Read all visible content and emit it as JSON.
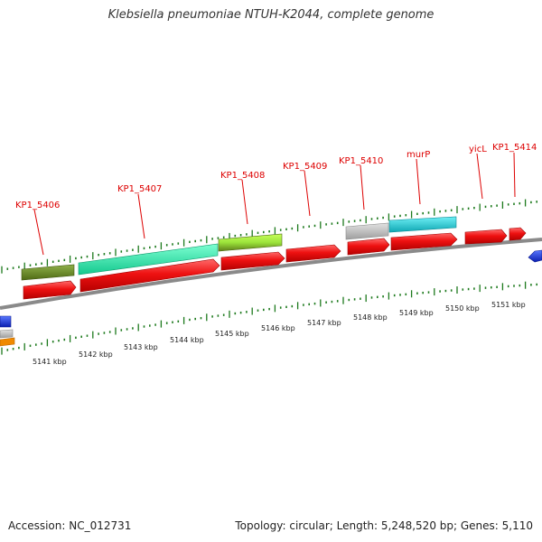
{
  "title": "Klebsiella pneumoniae NTUH-K2044, complete genome",
  "footer": {
    "accession": "Accession: NC_012731",
    "summary": "Topology: circular; Length: 5,248,520 bp; Genes: 5,110"
  },
  "colors": {
    "backbone": "#8a8a8a",
    "cds": "#ee1111",
    "tick": "#1d7a1d",
    "label": "#dd0000",
    "rna_olive": "#6b8e23",
    "rna_aqua": "#22e8a8",
    "rna_lime": "#9be33a",
    "rna_grey": "#bdbdbd",
    "rna_cyan": "#18c6d2",
    "edge_blue": "#1030e0",
    "edge_orange": "#f08a00"
  },
  "scale_labels": [
    "5141 kbp",
    "5142 kbp",
    "5143 kbp",
    "5144 kbp",
    "5145 kbp",
    "5146 kbp",
    "5147 kbp",
    "5148 kbp",
    "5149 kbp",
    "5150 kbp",
    "5151 kbp"
  ],
  "gene_labels": [
    "KP1_5406",
    "KP1_5407",
    "KP1_5408",
    "KP1_5409",
    "KP1_5410",
    "murP",
    "yicL",
    "KP1_5414"
  ]
}
